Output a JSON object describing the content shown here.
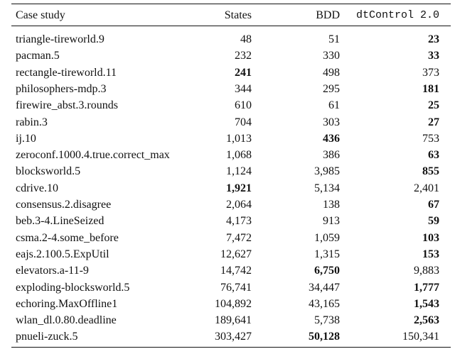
{
  "table": {
    "header": [
      "Case study",
      "States",
      "BDD",
      "dtControl 2.0"
    ],
    "rows": [
      [
        "triangle-tireworld.9",
        "48",
        "51",
        "23"
      ],
      [
        "pacman.5",
        "232",
        "330",
        "33"
      ],
      [
        "rectangle-tireworld.11",
        "241",
        "498",
        "373"
      ],
      [
        "philosophers-mdp.3",
        "344",
        "295",
        "181"
      ],
      [
        "firewire_abst.3.rounds",
        "610",
        "61",
        "25"
      ],
      [
        "rabin.3",
        "704",
        "303",
        "27"
      ],
      [
        "ij.10",
        "1,013",
        "436",
        "753"
      ],
      [
        "zeroconf.1000.4.true.correct_max",
        "1,068",
        "386",
        "63"
      ],
      [
        "blocksworld.5",
        "1,124",
        "3,985",
        "855"
      ],
      [
        "cdrive.10",
        "1,921",
        "5,134",
        "2,401"
      ],
      [
        "consensus.2.disagree",
        "2,064",
        "138",
        "67"
      ],
      [
        "beb.3-4.LineSeized",
        "4,173",
        "913",
        "59"
      ],
      [
        "csma.2-4.some_before",
        "7,472",
        "1,059",
        "103"
      ],
      [
        "eajs.2.100.5.ExpUtil",
        "12,627",
        "1,315",
        "153"
      ],
      [
        "elevators.a-11-9",
        "14,742",
        "6,750",
        "9,883"
      ],
      [
        "exploding-blocksworld.5",
        "76,741",
        "34,447",
        "1,777"
      ],
      [
        "echoring.MaxOffline1",
        "104,892",
        "43,165",
        "1,543"
      ],
      [
        "wlan_dl.0.80.deadline",
        "189,641",
        "5,738",
        "2,563"
      ],
      [
        "pnueli-zuck.5",
        "303,427",
        "50,128",
        "150,341"
      ]
    ],
    "bold_column": [
      3,
      3,
      1,
      3,
      3,
      3,
      2,
      3,
      3,
      1,
      3,
      3,
      3,
      3,
      2,
      3,
      3,
      3,
      2
    ]
  }
}
